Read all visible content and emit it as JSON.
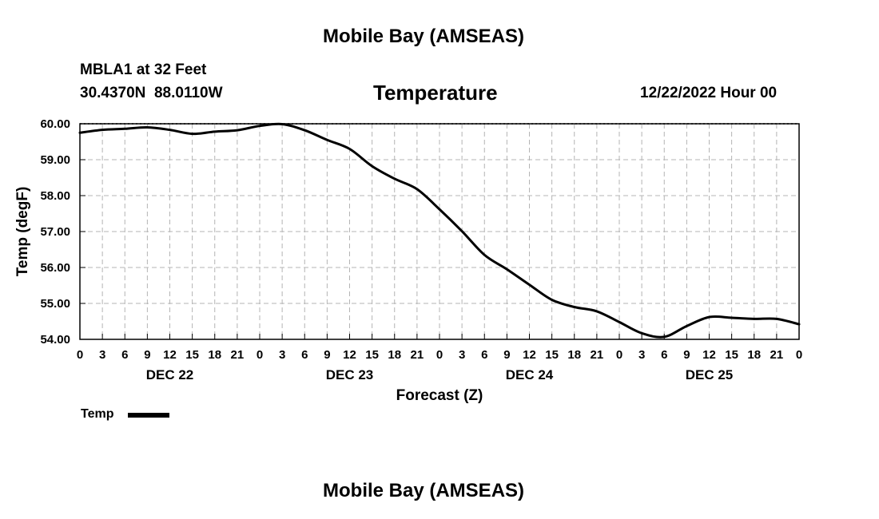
{
  "page": {
    "title": "Mobile Bay (AMSEAS)",
    "footer_title": "Mobile Bay (AMSEAS)"
  },
  "station": {
    "name_depth": "MBLA1 at 32 Feet",
    "coords": "30.4370N  88.0110W",
    "datetime": "12/22/2022 Hour 00"
  },
  "legend": {
    "label": "Temp"
  },
  "colors": {
    "line": "#000000",
    "grid": "#b4b4b4",
    "frame": "#000000"
  },
  "chart_data": {
    "type": "line",
    "title": "Temperature",
    "xlabel": "Forecast (Z)",
    "ylabel": "Temp (degF)",
    "ylim": [
      54.0,
      60.0
    ],
    "xlim": [
      0,
      96
    ],
    "y_ticks": [
      "54.00",
      "55.00",
      "56.00",
      "57.00",
      "58.00",
      "59.00",
      "60.00"
    ],
    "x_ticks": [
      "0",
      "3",
      "6",
      "9",
      "12",
      "15",
      "18",
      "21",
      "0",
      "3",
      "6",
      "9",
      "12",
      "15",
      "18",
      "21",
      "0",
      "3",
      "6",
      "9",
      "12",
      "15",
      "18",
      "21",
      "0",
      "3",
      "6",
      "9",
      "12",
      "15",
      "18",
      "21",
      "0"
    ],
    "date_labels": [
      {
        "label": "DEC 22",
        "hour": 12
      },
      {
        "label": "DEC 23",
        "hour": 36
      },
      {
        "label": "DEC 24",
        "hour": 60
      },
      {
        "label": "DEC 25",
        "hour": 84
      }
    ],
    "grid": true,
    "series": [
      {
        "name": "Temp",
        "x": [
          0,
          3,
          6,
          9,
          12,
          15,
          18,
          21,
          24,
          27,
          30,
          33,
          36,
          39,
          42,
          45,
          48,
          51,
          54,
          57,
          60,
          63,
          66,
          69,
          72,
          75,
          78,
          81,
          84,
          87,
          90,
          93,
          96
        ],
        "values": [
          59.75,
          59.83,
          59.86,
          59.9,
          59.83,
          59.72,
          59.78,
          59.82,
          59.94,
          59.99,
          59.82,
          59.55,
          59.3,
          58.82,
          58.47,
          58.18,
          57.62,
          57.01,
          56.35,
          55.95,
          55.52,
          55.1,
          54.9,
          54.78,
          54.48,
          54.17,
          54.07,
          54.37,
          54.62,
          54.6,
          54.57,
          54.57,
          54.42
        ]
      }
    ]
  }
}
